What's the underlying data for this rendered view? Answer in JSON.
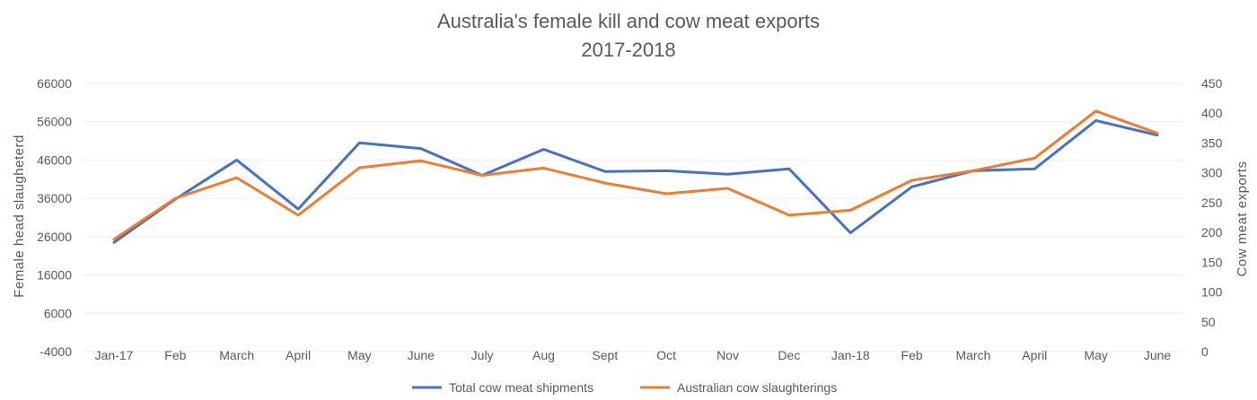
{
  "chart_data": {
    "type": "line",
    "title": "Australia's female kill and cow meat exports",
    "subtitle": "2017-2018",
    "ylabel": "Female head slaugheterd",
    "y2label": "Cow meat exports",
    "ylim": [
      -4000,
      66000
    ],
    "y2lim": [
      0,
      450
    ],
    "yticks": [
      "66000",
      "56000",
      "46000",
      "36000",
      "26000",
      "16000",
      "6000",
      "-4000"
    ],
    "y2ticks": [
      "450",
      "400",
      "350",
      "300",
      "250",
      "200",
      "150",
      "100",
      "50",
      "0"
    ],
    "categories": [
      "Jan-17",
      "Feb",
      "March",
      "April",
      "May",
      "June",
      "July",
      "Aug",
      "Sept",
      "Oct",
      "Nov",
      "Dec",
      "Jan-18",
      "Feb",
      "March",
      "April",
      "May",
      "June"
    ],
    "grid": true,
    "legend_position": "bottom",
    "series": [
      {
        "name": "Total cow meat shipments",
        "axis": "left",
        "color": "#4472C4",
        "values": [
          24500,
          35800,
          46000,
          33200,
          50500,
          49000,
          42000,
          48800,
          43000,
          43200,
          42300,
          43700,
          27000,
          39000,
          43200,
          43700,
          56300,
          52500
        ]
      },
      {
        "name": "Australian cow slaughterings",
        "axis": "left",
        "color": "#ED7D31",
        "values": [
          25300,
          36000,
          41400,
          31600,
          44000,
          45800,
          42000,
          43900,
          40000,
          37200,
          38600,
          31600,
          32900,
          40700,
          43200,
          46500,
          58800,
          53000
        ]
      }
    ]
  }
}
